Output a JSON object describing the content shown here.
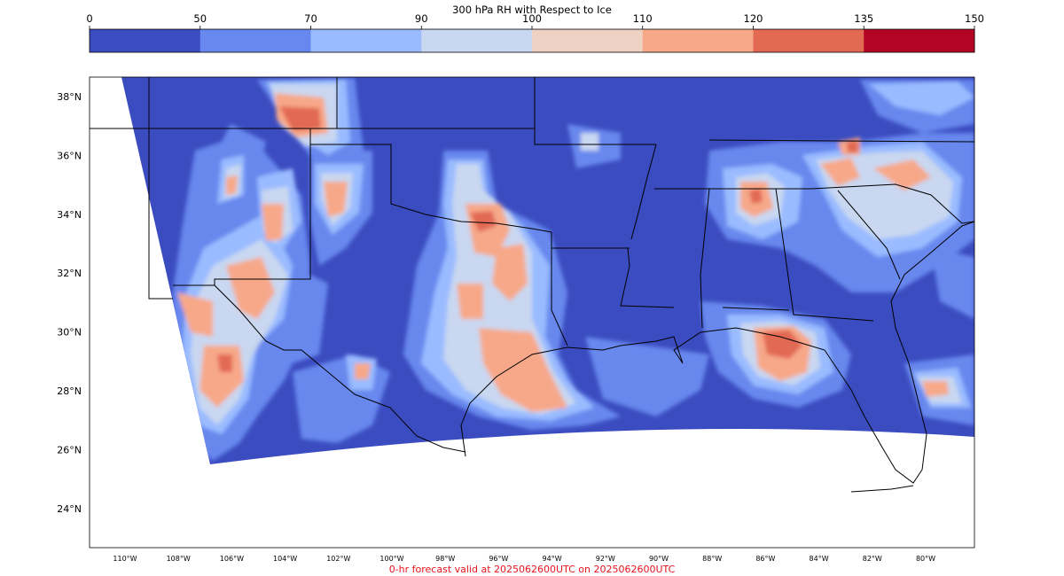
{
  "colorbar": {
    "title": "300 hPa RH with Respect to Ice",
    "ticks": [
      "0",
      "50",
      "70",
      "90",
      "100",
      "110",
      "120",
      "135",
      "150"
    ],
    "colors": [
      "#3b4cc0",
      "#6788ee",
      "#9abbff",
      "#c9d7f0",
      "#edd1c2",
      "#f7a889",
      "#e26952",
      "#b40426"
    ]
  },
  "map": {
    "lat_labels": [
      "38°N",
      "36°N",
      "34°N",
      "32°N",
      "30°N",
      "28°N",
      "26°N",
      "24°N"
    ],
    "lon_labels": [
      "110°W",
      "108°W",
      "106°W",
      "104°W",
      "102°W",
      "100°W",
      "98°W",
      "96°W",
      "94°W",
      "92°W",
      "90°W",
      "88°W",
      "86°W",
      "84°W",
      "82°W",
      "80°W"
    ]
  },
  "footer": {
    "text": "0-hr forecast valid at 2025062600UTC on 2025062600UTC"
  }
}
